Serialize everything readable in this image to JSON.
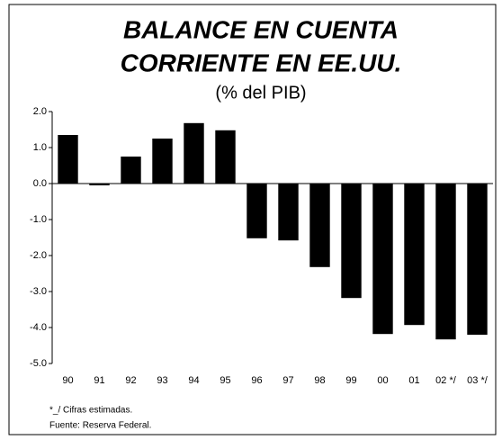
{
  "chart_data": {
    "type": "bar",
    "title": [
      "BALANCE EN CUENTA",
      "CORRIENTE EN EE.UU."
    ],
    "subtitle": "(% del PIB)",
    "categories": [
      "90",
      "91",
      "92",
      "93",
      "94",
      "95",
      "96",
      "97",
      "98",
      "99",
      "00",
      "01",
      "02 */",
      "03 */"
    ],
    "values": [
      1.35,
      -0.05,
      0.75,
      1.25,
      1.68,
      1.48,
      -1.52,
      -1.58,
      -2.32,
      -3.18,
      -4.18,
      -3.93,
      -4.33,
      -4.2
    ],
    "color": "#000000",
    "ylim": [
      -5,
      2
    ],
    "yticks": [
      {
        "value": 2,
        "label": "2.0"
      },
      {
        "value": 1,
        "label": "1.0"
      },
      {
        "value": 0,
        "label": "0.0"
      },
      {
        "value": -1,
        "label": "-1.0"
      },
      {
        "value": -2,
        "label": "-2.0"
      },
      {
        "value": -3,
        "label": "-3.0"
      },
      {
        "value": -4,
        "label": "-4.0"
      },
      {
        "value": -5,
        "label": "-5.0"
      }
    ],
    "grid": false,
    "footnotes": [
      "*_/ Cifras estimadas.",
      "Fuente: Reserva Federal."
    ]
  }
}
